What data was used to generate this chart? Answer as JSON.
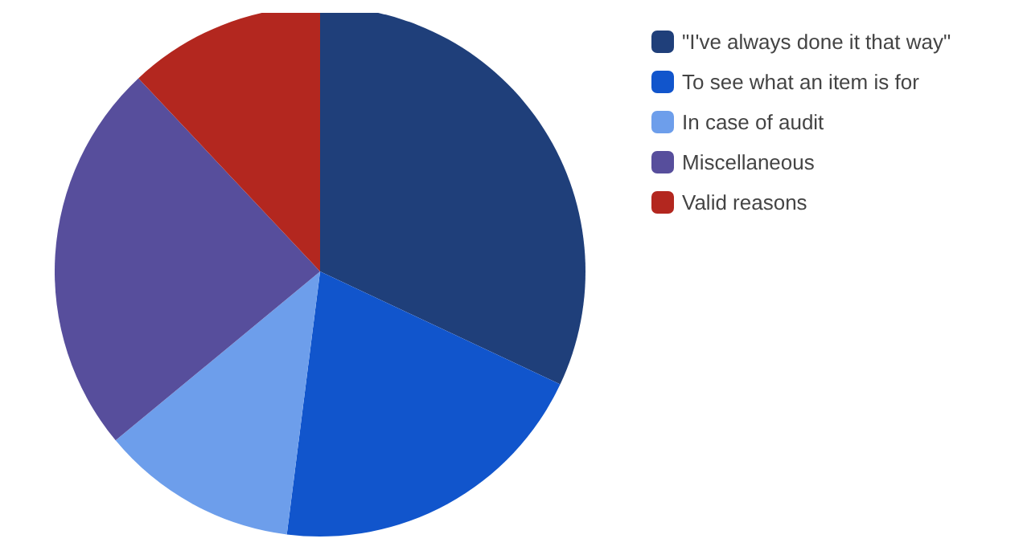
{
  "chart_data": {
    "type": "pie",
    "categories": [
      "\"I've always done it that way\"",
      "To see what an item is for",
      "In case of audit",
      "Miscellaneous",
      "Valid reasons"
    ],
    "values": [
      32,
      20,
      12,
      24,
      12
    ],
    "colors": [
      "#1f3f7a",
      "#1155cc",
      "#6d9eeb",
      "#574e9c",
      "#b3271f"
    ],
    "legend": "top right"
  }
}
